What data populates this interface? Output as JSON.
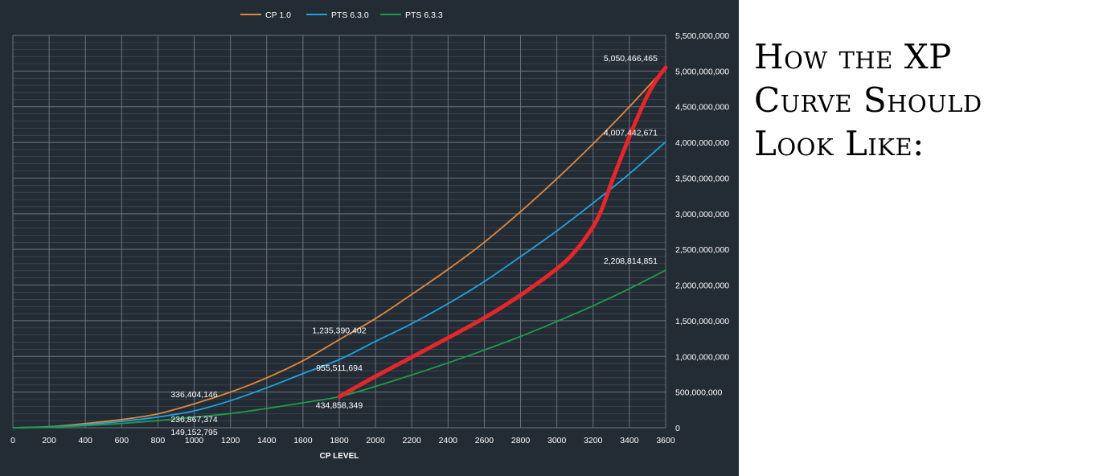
{
  "annotation": {
    "lines": [
      "How the XP",
      "Curve Should",
      "Look Like:"
    ]
  },
  "colors": {
    "background": "#232b35",
    "grid": "#6b737d",
    "text": "#ffffff",
    "cp10": "#e0893a",
    "pts630": "#1fa3e0",
    "pts633": "#1d9e4a",
    "hand_drawn": "#e5262b"
  },
  "chart_data": {
    "type": "line",
    "title": "",
    "xlabel": "CP LEVEL",
    "ylabel": "",
    "xlim": [
      0,
      3600
    ],
    "ylim": [
      0,
      5500000000
    ],
    "x_ticks": [
      0,
      200,
      400,
      600,
      800,
      1000,
      1200,
      1400,
      1600,
      1800,
      2000,
      2200,
      2400,
      2600,
      2800,
      3000,
      3200,
      3400,
      3600
    ],
    "y_ticks": [
      0,
      500000000,
      1000000000,
      1500000000,
      2000000000,
      2500000000,
      3000000000,
      3500000000,
      4000000000,
      4500000000,
      5000000000,
      5500000000
    ],
    "y_tick_labels": [
      "0",
      "500,000,000",
      "1,000,000,000",
      "1,500,000,000",
      "2,000,000,000",
      "2,500,000,000",
      "3,000,000,000",
      "3,500,000,000",
      "4,000,000,000",
      "4,500,000,000",
      "5,000,000,000",
      "5,500,000,000"
    ],
    "grid": true,
    "legend_position": "top-center",
    "series": [
      {
        "name": "CP 1.0",
        "color_key": "cp10",
        "x": [
          0,
          200,
          400,
          600,
          800,
          1000,
          1200,
          1400,
          1600,
          1800,
          2000,
          2200,
          2400,
          2600,
          2800,
          3000,
          3200,
          3400,
          3600
        ],
        "y": [
          0,
          15000000,
          60000000,
          115000000,
          195000000,
          336404146,
          500000000,
          700000000,
          940000000,
          1235390402,
          1530000000,
          1870000000,
          2220000000,
          2600000000,
          3030000000,
          3490000000,
          3980000000,
          4500000000,
          5050466465
        ]
      },
      {
        "name": "PTS 6.3.0",
        "color_key": "pts630",
        "x": [
          0,
          200,
          400,
          600,
          800,
          1000,
          1200,
          1400,
          1600,
          1800,
          2000,
          2200,
          2400,
          2600,
          2800,
          3000,
          3200,
          3400,
          3600
        ],
        "y": [
          0,
          12000000,
          45000000,
          90000000,
          150000000,
          236867374,
          380000000,
          560000000,
          760000000,
          955511694,
          1210000000,
          1460000000,
          1740000000,
          2050000000,
          2400000000,
          2760000000,
          3150000000,
          3560000000,
          4007442671
        ]
      },
      {
        "name": "PTS 6.3.3",
        "color_key": "pts633",
        "x": [
          0,
          200,
          400,
          600,
          800,
          1000,
          1200,
          1400,
          1600,
          1800,
          2000,
          2200,
          2400,
          2600,
          2800,
          3000,
          3200,
          3400,
          3600
        ],
        "y": [
          0,
          8000000,
          30000000,
          60000000,
          100000000,
          149152795,
          200000000,
          270000000,
          350000000,
          434858349,
          580000000,
          740000000,
          910000000,
          1090000000,
          1280000000,
          1490000000,
          1710000000,
          1950000000,
          2208814851
        ]
      }
    ],
    "hand_drawn_curve": {
      "color_key": "hand_drawn",
      "x": [
        1800,
        1900,
        2000,
        2200,
        2400,
        2600,
        2800,
        3000,
        3100,
        3200,
        3250,
        3300,
        3350,
        3400,
        3450,
        3500,
        3550,
        3600
      ],
      "y": [
        434858349,
        580000000,
        720000000,
        990000000,
        1260000000,
        1540000000,
        1860000000,
        2230000000,
        2470000000,
        2820000000,
        3080000000,
        3430000000,
        3760000000,
        4080000000,
        4380000000,
        4660000000,
        4880000000,
        5050466465
      ]
    },
    "data_labels": [
      {
        "text": "5,050,466,465",
        "x": 3600,
        "y": 5050466465,
        "anchor": "end",
        "dy": -1
      },
      {
        "text": "4,007,442,671",
        "x": 3600,
        "y": 4007442671,
        "anchor": "end",
        "dy": -1
      },
      {
        "text": "2,208,814,851",
        "x": 3600,
        "y": 2208814851,
        "anchor": "end",
        "dy": -1
      },
      {
        "text": "1,235,390,402",
        "x": 1800,
        "y": 1235390402,
        "anchor": "middle",
        "dy": -1
      },
      {
        "text": "955,511,694",
        "x": 1800,
        "y": 955511694,
        "anchor": "middle",
        "dy": 1
      },
      {
        "text": "434,858,349",
        "x": 1800,
        "y": 434858349,
        "anchor": "middle",
        "dy": 1
      },
      {
        "text": "336,404,146",
        "x": 1000,
        "y": 336404146,
        "anchor": "middle",
        "dy": -1
      },
      {
        "text": "236,867,374",
        "x": 1000,
        "y": 236867374,
        "anchor": "middle",
        "dy": 1
      },
      {
        "text": "149,152,795",
        "x": 1000,
        "y": 149152795,
        "anchor": "middle",
        "dy": 2
      }
    ]
  }
}
